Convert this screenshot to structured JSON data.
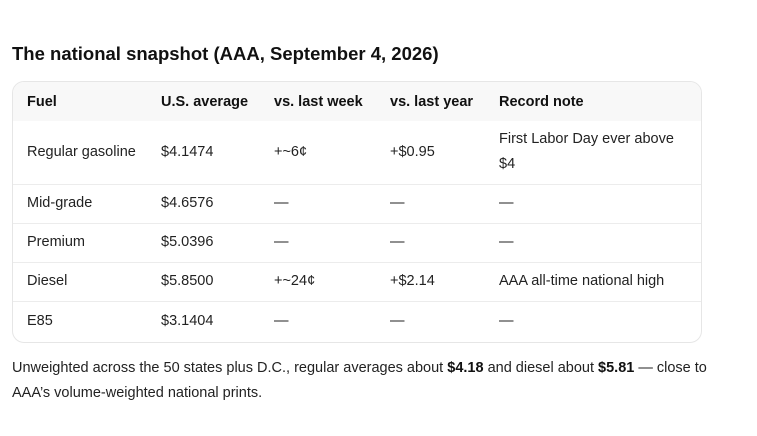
{
  "heading": "The national snapshot (AAA, September 4, 2026)",
  "table": {
    "headers": {
      "fuel": "Fuel",
      "avg": "U.S. average",
      "week": "vs. last week",
      "year": "vs. last year",
      "note": "Record note"
    },
    "rows": [
      {
        "fuel": "Regular gasoline",
        "avg": "$4.1474",
        "week": "+~6¢",
        "year": "+$0.95",
        "note": "First Labor Day ever above $4"
      },
      {
        "fuel": "Mid-grade",
        "avg": "$4.6576",
        "week": "—",
        "year": "—",
        "note": "—"
      },
      {
        "fuel": "Premium",
        "avg": "$5.0396",
        "week": "—",
        "year": "—",
        "note": "—"
      },
      {
        "fuel": "Diesel",
        "avg": "$5.8500",
        "week": "+~24¢",
        "year": "+$2.14",
        "note": "AAA all-time national high"
      },
      {
        "fuel": "E85",
        "avg": "$3.1404",
        "week": "—",
        "year": "—",
        "note": "—"
      }
    ]
  },
  "footnote": {
    "part1": "Unweighted across the 50 states plus D.C., regular averages about ",
    "regular_value": "$4.18",
    "part2": " and diesel about ",
    "diesel_value": "$5.81",
    "part3": " — close to AAA’s volume-weighted national prints."
  }
}
